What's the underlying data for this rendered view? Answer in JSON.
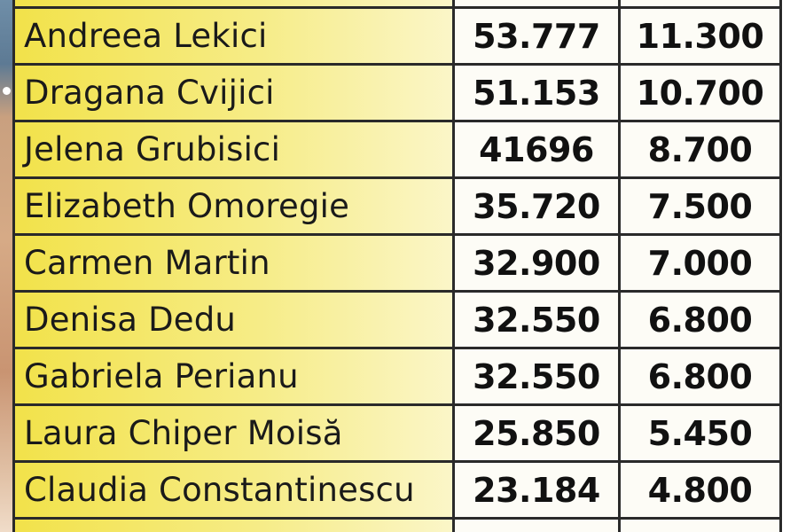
{
  "table": {
    "rows": [
      {
        "name": "Andreea Lekici",
        "value1": "53.777",
        "value2": "11.300"
      },
      {
        "name": "Dragana Cvijici",
        "value1": "51.153",
        "value2": "10.700"
      },
      {
        "name": "Jelena Grubisici",
        "value1": "41696",
        "value2": "8.700"
      },
      {
        "name": "Elizabeth Omoregie",
        "value1": "35.720",
        "value2": "7.500"
      },
      {
        "name": "Carmen Martin",
        "value1": "32.900",
        "value2": "7.000"
      },
      {
        "name": "Denisa Dedu",
        "value1": "32.550",
        "value2": "6.800"
      },
      {
        "name": "Gabriela Perianu",
        "value1": "32.550",
        "value2": "6.800"
      },
      {
        "name": "Laura Chiper Moisă",
        "value1": "25.850",
        "value2": "5.450"
      },
      {
        "name": "Claudia Constantinescu",
        "value1": "23.184",
        "value2": "4.800"
      }
    ]
  },
  "colors": {
    "name_cell_yellow": "#f2e24a",
    "grid": "#2a2a2a",
    "text": "#111111"
  }
}
